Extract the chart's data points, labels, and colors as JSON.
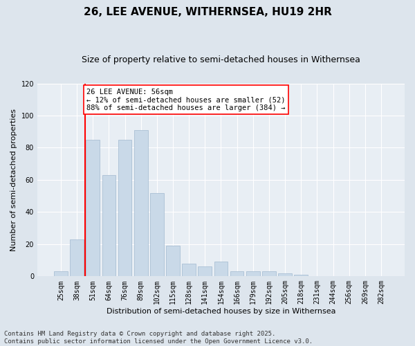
{
  "title": "26, LEE AVENUE, WITHERNSEA, HU19 2HR",
  "subtitle": "Size of property relative to semi-detached houses in Withernsea",
  "xlabel": "Distribution of semi-detached houses by size in Withernsea",
  "ylabel": "Number of semi-detached properties",
  "categories": [
    "25sqm",
    "38sqm",
    "51sqm",
    "64sqm",
    "76sqm",
    "89sqm",
    "102sqm",
    "115sqm",
    "128sqm",
    "141sqm",
    "154sqm",
    "166sqm",
    "179sqm",
    "192sqm",
    "205sqm",
    "218sqm",
    "231sqm",
    "244sqm",
    "256sqm",
    "269sqm",
    "282sqm"
  ],
  "values": [
    3,
    23,
    85,
    63,
    85,
    91,
    52,
    19,
    8,
    6,
    9,
    3,
    3,
    3,
    2,
    1,
    0,
    0,
    0,
    0,
    0
  ],
  "bar_color": "#c9d9e8",
  "bar_edge_color": "#a0b8d0",
  "vline_color": "red",
  "vline_pos": 1.5,
  "annotation_text": "26 LEE AVENUE: 56sqm\n← 12% of semi-detached houses are smaller (52)\n88% of semi-detached houses are larger (384) →",
  "annotation_box_color": "white",
  "annotation_border_color": "red",
  "ylim": [
    0,
    120
  ],
  "yticks": [
    0,
    20,
    40,
    60,
    80,
    100,
    120
  ],
  "footnote": "Contains HM Land Registry data © Crown copyright and database right 2025.\nContains public sector information licensed under the Open Government Licence v3.0.",
  "bg_color": "#dde5ed",
  "plot_bg_color": "#e8eef4",
  "title_fontsize": 11,
  "subtitle_fontsize": 9,
  "axis_label_fontsize": 8,
  "tick_fontsize": 7,
  "footnote_fontsize": 6.5,
  "annotation_fontsize": 7.5
}
